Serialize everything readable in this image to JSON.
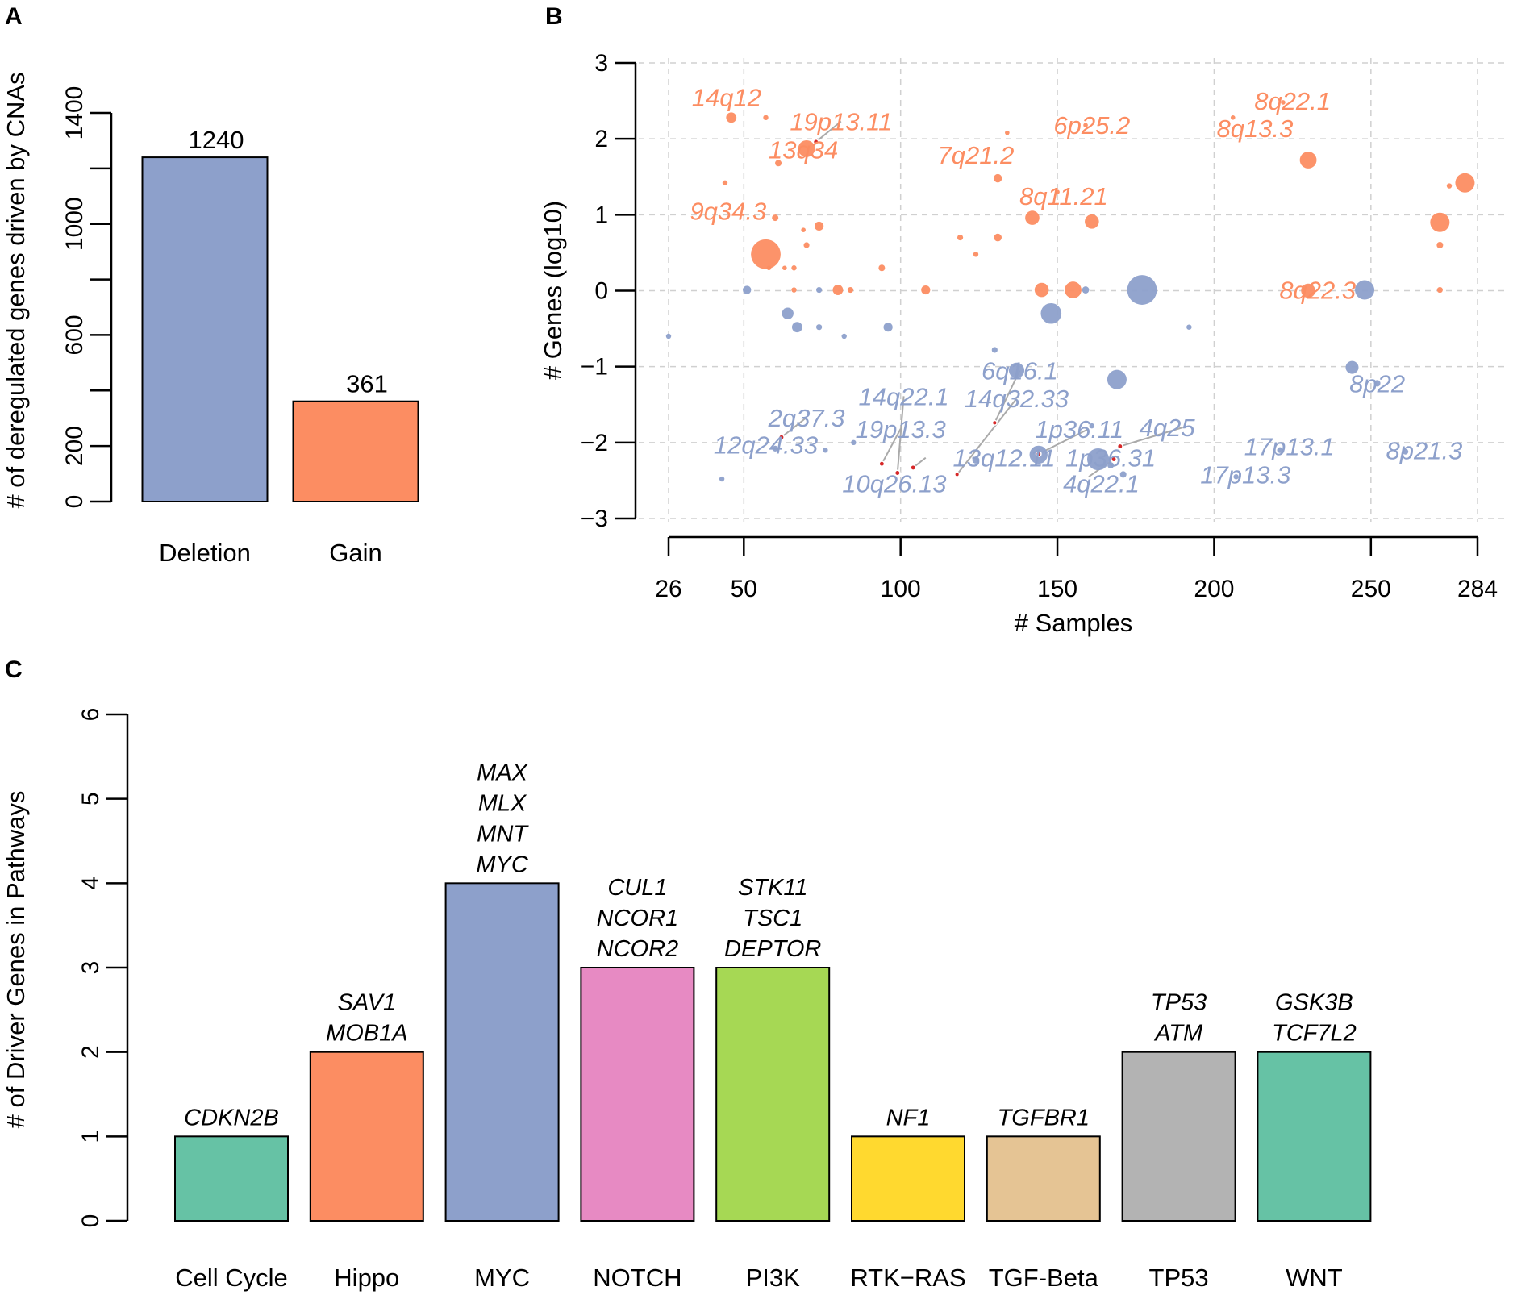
{
  "colors": {
    "deletion": "#8da0cb",
    "gain": "#fc8d62",
    "highlight": "#d62728",
    "connector": "#aaaaaa"
  },
  "panels": {
    "a": "A",
    "b": "B",
    "c": "C"
  },
  "chart_data": [
    {
      "type": "bar",
      "panel": "A",
      "categories": [
        "Deletion",
        "Gain"
      ],
      "values": [
        1240,
        361
      ],
      "value_labels": [
        "1240",
        "361"
      ],
      "colors": [
        "#8da0cb",
        "#fc8d62"
      ],
      "ylabel": "# of deregulated genes driven by CNAs",
      "ylim": [
        0,
        1400
      ],
      "yticks": [
        0,
        200,
        600,
        1000,
        1400
      ],
      "ytick_labels": [
        "0",
        "200",
        "600",
        "1000",
        "1400"
      ],
      "yticks_unlabeled": [
        400,
        800,
        1200
      ]
    },
    {
      "type": "scatter",
      "panel": "B",
      "xlabel": "# Samples",
      "ylabel": "# Genes (log10)",
      "xlim": [
        26,
        284
      ],
      "ylim": [
        -3,
        3
      ],
      "xticks": [
        26,
        50,
        100,
        150,
        200,
        250,
        284
      ],
      "xtick_labels": [
        "26",
        "50",
        "100",
        "150",
        "200",
        "250",
        "284"
      ],
      "yticks": [
        -3,
        -2,
        -1,
        0,
        1,
        2,
        3
      ],
      "ytick_labels": [
        "−3",
        "−2",
        "−1",
        "0",
        "1",
        "2",
        "3"
      ],
      "grid": true,
      "series": [
        {
          "name": "Gain",
          "color": "#fc8d62",
          "points": [
            {
              "x": 57,
              "y": 0.48,
              "s": 2.3
            },
            {
              "x": 46,
              "y": 2.28,
              "s": 0.8
            },
            {
              "x": 70,
              "y": 1.87,
              "s": 1.3
            },
            {
              "x": 230,
              "y": 1.72,
              "s": 1.3
            },
            {
              "x": 280,
              "y": 1.42,
              "s": 1.5
            },
            {
              "x": 272,
              "y": 0.9,
              "s": 1.5
            },
            {
              "x": 142,
              "y": 0.96,
              "s": 1.1
            },
            {
              "x": 161,
              "y": 0.91,
              "s": 1.1
            },
            {
              "x": 155,
              "y": 0.01,
              "s": 1.3
            },
            {
              "x": 145,
              "y": 0.01,
              "s": 1.1
            },
            {
              "x": 230,
              "y": 0.0,
              "s": 1.1
            },
            {
              "x": 108,
              "y": 0.01,
              "s": 0.7
            },
            {
              "x": 80,
              "y": 0.01,
              "s": 0.8
            },
            {
              "x": 74,
              "y": 0.85,
              "s": 0.7
            },
            {
              "x": 131,
              "y": 1.48,
              "s": 0.65
            },
            {
              "x": 131,
              "y": 0.7,
              "s": 0.6
            },
            {
              "x": 119,
              "y": 0.7,
              "s": 0.45
            },
            {
              "x": 124,
              "y": 0.48,
              "s": 0.4
            },
            {
              "x": 94,
              "y": 0.3,
              "s": 0.5
            },
            {
              "x": 61,
              "y": 1.68,
              "s": 0.5
            },
            {
              "x": 57,
              "y": 2.28,
              "s": 0.4
            },
            {
              "x": 44,
              "y": 1.42,
              "s": 0.4
            },
            {
              "x": 60,
              "y": 0.96,
              "s": 0.5
            },
            {
              "x": 70,
              "y": 0.6,
              "s": 0.45
            },
            {
              "x": 66,
              "y": 0.3,
              "s": 0.4
            },
            {
              "x": 63,
              "y": 0.3,
              "s": 0.35
            },
            {
              "x": 84,
              "y": 0.01,
              "s": 0.45
            },
            {
              "x": 66,
              "y": 0.01,
              "s": 0.4
            },
            {
              "x": 272,
              "y": 0.6,
              "s": 0.5
            },
            {
              "x": 272,
              "y": 0.01,
              "s": 0.45
            },
            {
              "x": 275,
              "y": 1.38,
              "s": 0.4
            },
            {
              "x": 69,
              "y": 0.8,
              "s": 0.35
            },
            {
              "x": 58,
              "y": 0.3,
              "s": 0.35
            },
            {
              "x": 159,
              "y": 2.18,
              "s": 0.35
            },
            {
              "x": 134,
              "y": 2.08,
              "s": 0.35
            },
            {
              "x": 222,
              "y": 2.48,
              "s": 0.35
            },
            {
              "x": 206,
              "y": 2.28,
              "s": 0.35
            },
            {
              "x": 150,
              "y": 1.3,
              "s": 0.35
            }
          ]
        },
        {
          "name": "Deletion",
          "color": "#8da0cb",
          "points": [
            {
              "x": 177,
              "y": 0.01,
              "s": 2.3
            },
            {
              "x": 148,
              "y": -0.3,
              "s": 1.6
            },
            {
              "x": 169,
              "y": -1.17,
              "s": 1.5
            },
            {
              "x": 248,
              "y": 0.01,
              "s": 1.5
            },
            {
              "x": 163,
              "y": -2.22,
              "s": 1.7
            },
            {
              "x": 144,
              "y": -2.16,
              "s": 1.4
            },
            {
              "x": 137,
              "y": -1.05,
              "s": 1.2
            },
            {
              "x": 244,
              "y": -1.01,
              "s": 1.0
            },
            {
              "x": 64,
              "y": -0.3,
              "s": 0.9
            },
            {
              "x": 67,
              "y": -0.48,
              "s": 0.8
            },
            {
              "x": 96,
              "y": -0.48,
              "s": 0.7
            },
            {
              "x": 51,
              "y": 0.01,
              "s": 0.65
            },
            {
              "x": 159,
              "y": 0.01,
              "s": 0.55
            },
            {
              "x": 26,
              "y": -0.6,
              "s": 0.4
            },
            {
              "x": 74,
              "y": -0.48,
              "s": 0.45
            },
            {
              "x": 74,
              "y": 0.01,
              "s": 0.45
            },
            {
              "x": 82,
              "y": -0.6,
              "s": 0.4
            },
            {
              "x": 130,
              "y": -0.78,
              "s": 0.45
            },
            {
              "x": 192,
              "y": -0.48,
              "s": 0.4
            },
            {
              "x": 43,
              "y": -2.48,
              "s": 0.4
            },
            {
              "x": 76,
              "y": -2.1,
              "s": 0.4
            },
            {
              "x": 85,
              "y": -2.0,
              "s": 0.4
            },
            {
              "x": 60,
              "y": -2.08,
              "s": 0.45
            },
            {
              "x": 124,
              "y": -2.23,
              "s": 0.55
            },
            {
              "x": 161,
              "y": -1.78,
              "s": 0.4
            },
            {
              "x": 252,
              "y": -1.22,
              "s": 0.5
            },
            {
              "x": 261,
              "y": -2.12,
              "s": 0.45
            },
            {
              "x": 221,
              "y": -2.1,
              "s": 0.45
            },
            {
              "x": 207,
              "y": -2.45,
              "s": 0.4
            },
            {
              "x": 167,
              "y": -2.3,
              "s": 0.5
            },
            {
              "x": 171,
              "y": -2.42,
              "s": 0.5
            }
          ]
        },
        {
          "name": "Driver highlight",
          "color": "#d62728",
          "points": [
            {
              "x": 73,
              "y": 1.96,
              "s": 0.4
            },
            {
              "x": 62,
              "y": -1.93,
              "s": 0.4
            },
            {
              "x": 94,
              "y": -2.28,
              "s": 0.4
            },
            {
              "x": 99,
              "y": -2.4,
              "s": 0.4
            },
            {
              "x": 104,
              "y": -2.33,
              "s": 0.4
            },
            {
              "x": 118,
              "y": -2.42,
              "s": 0.35
            },
            {
              "x": 130,
              "y": -1.74,
              "s": 0.35
            },
            {
              "x": 144,
              "y": -2.15,
              "s": 0.4
            },
            {
              "x": 168,
              "y": -2.22,
              "s": 0.4
            },
            {
              "x": 170,
              "y": -2.05,
              "s": 0.4
            }
          ]
        }
      ],
      "annotations": {
        "gain": [
          {
            "text": "14q12",
            "x": 44.5,
            "y": 2.55
          },
          {
            "text": "19p13.11",
            "x": 81,
            "y": 2.23
          },
          {
            "text": "13q34",
            "x": 69,
            "y": 1.86
          },
          {
            "text": "9q34.3",
            "x": 45,
            "y": 1.05
          },
          {
            "text": "6p25.2",
            "x": 161,
            "y": 2.18
          },
          {
            "text": "7q21.2",
            "x": 124,
            "y": 1.79
          },
          {
            "text": "8q11.21",
            "x": 152,
            "y": 1.25
          },
          {
            "text": "8q22.1",
            "x": 225,
            "y": 2.5
          },
          {
            "text": "8q13.3",
            "x": 213,
            "y": 2.14
          },
          {
            "text": "8q22.3",
            "x": 233,
            "y": 0.01
          }
        ],
        "deletion": [
          {
            "text": "6q16.1",
            "x": 138,
            "y": -1.05
          },
          {
            "text": "14q22.1",
            "x": 101,
            "y": -1.39
          },
          {
            "text": "14q32.33",
            "x": 137,
            "y": -1.42
          },
          {
            "text": "2q37.3",
            "x": 70,
            "y": -1.67
          },
          {
            "text": "19p13.3",
            "x": 100,
            "y": -1.82
          },
          {
            "text": "1p36.11",
            "x": 157,
            "y": -1.82
          },
          {
            "text": "4q25",
            "x": 185,
            "y": -1.8
          },
          {
            "text": "12q24.33",
            "x": 57,
            "y": -2.03
          },
          {
            "text": "13q12.11",
            "x": 133,
            "y": -2.2
          },
          {
            "text": "1p36.31",
            "x": 167,
            "y": -2.2
          },
          {
            "text": "10q26.13",
            "x": 98,
            "y": -2.54
          },
          {
            "text": "4q22.1",
            "x": 164,
            "y": -2.54
          },
          {
            "text": "8p22",
            "x": 252,
            "y": -1.22
          },
          {
            "text": "17p13.1",
            "x": 224,
            "y": -2.05
          },
          {
            "text": "8p21.3",
            "x": 267,
            "y": -2.1
          },
          {
            "text": "17p13.3",
            "x": 210,
            "y": -2.42
          }
        ]
      }
    },
    {
      "type": "bar",
      "panel": "C",
      "categories": [
        "Cell Cycle",
        "Hippo",
        "MYC",
        "NOTCH",
        "PI3K",
        "RTK−RAS",
        "TGF-Beta",
        "TP53",
        "WNT"
      ],
      "values": [
        1,
        2,
        4,
        3,
        3,
        1,
        1,
        2,
        2
      ],
      "colors": [
        "#66c2a5",
        "#fc8d62",
        "#8da0cb",
        "#e78ac3",
        "#a6d854",
        "#ffd92f",
        "#e5c494",
        "#b3b3b3",
        "#66c2a5"
      ],
      "genes": [
        [
          "CDKN2B"
        ],
        [
          "SAV1",
          "MOB1A"
        ],
        [
          "MAX",
          "MLX",
          "MNT",
          "MYC"
        ],
        [
          "CUL1",
          "NCOR1",
          "NCOR2"
        ],
        [
          "STK11",
          "TSC1",
          "DEPTOR"
        ],
        [
          "NF1"
        ],
        [
          "TGFBR1"
        ],
        [
          "TP53",
          "ATM"
        ],
        [
          "GSK3B",
          "TCF7L2"
        ]
      ],
      "ylabel": "# of Driver Genes in Pathways",
      "ylim": [
        0,
        6
      ],
      "yticks": [
        0,
        1,
        2,
        3,
        4,
        5,
        6
      ],
      "ytick_labels": [
        "0",
        "1",
        "2",
        "3",
        "4",
        "5",
        "6"
      ]
    }
  ]
}
